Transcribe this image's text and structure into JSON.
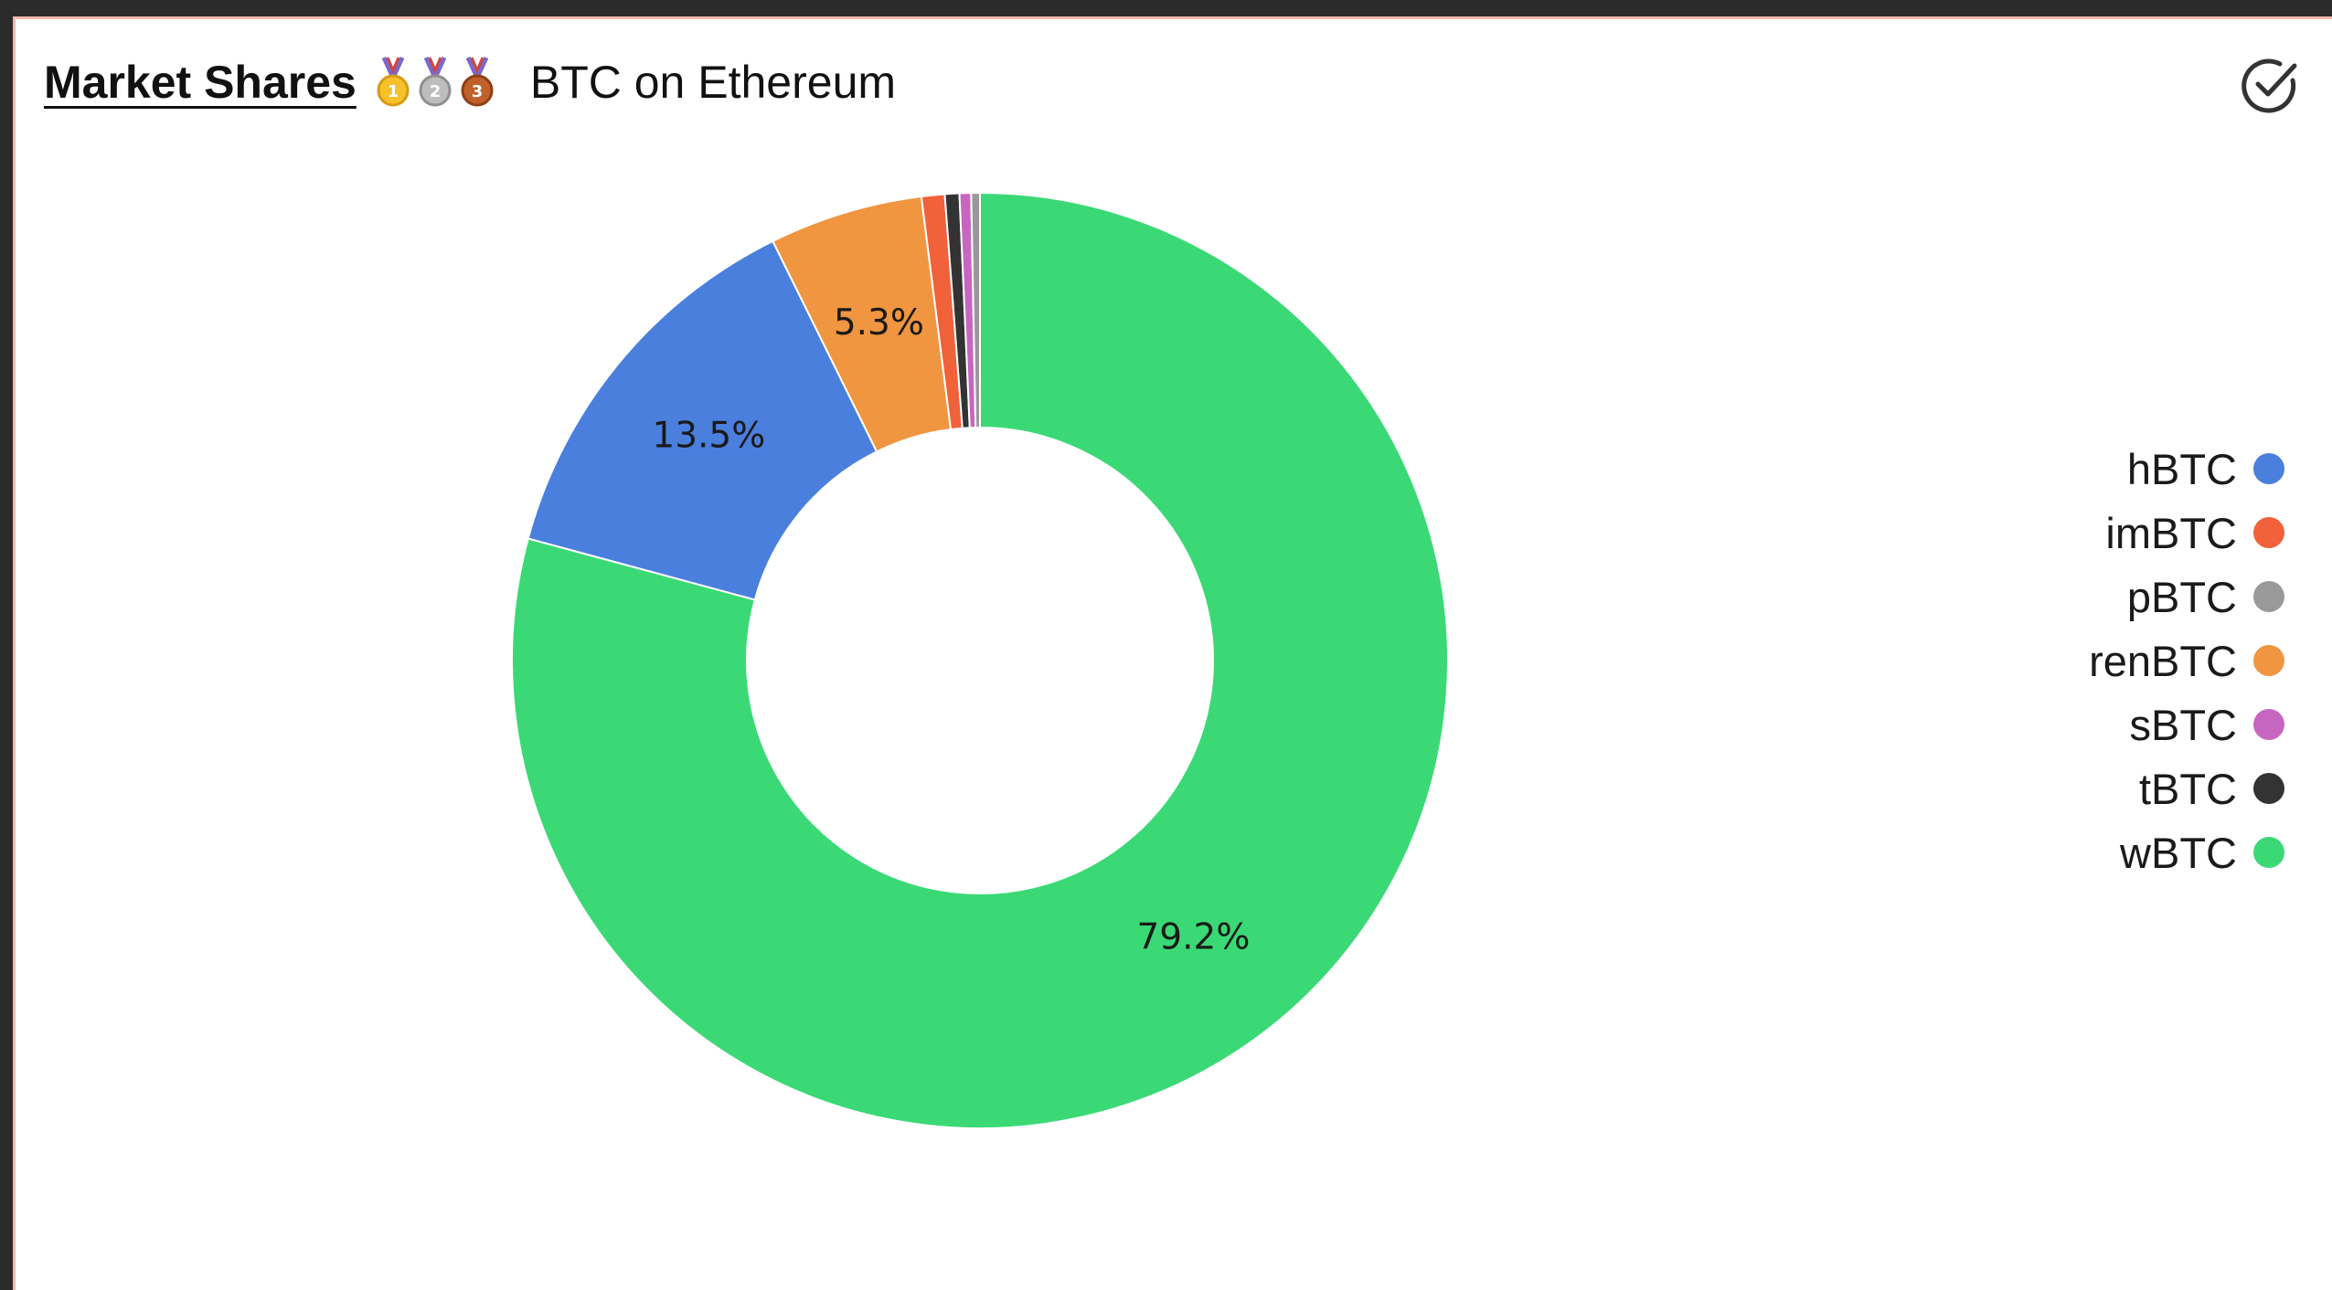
{
  "header": {
    "title": "Market Shares",
    "medal_icons": [
      "gold-medal-icon",
      "silver-medal-icon",
      "bronze-medal-icon"
    ],
    "subtitle": "BTC on Ethereum"
  },
  "actions": {
    "check_icon": "check-circle-icon"
  },
  "chart_data": {
    "type": "pie",
    "donut": true,
    "labels": [
      "wBTC",
      "hBTC",
      "renBTC",
      "imBTC",
      "tBTC",
      "sBTC",
      "pBTC"
    ],
    "values": [
      79.2,
      13.5,
      5.3,
      0.8,
      0.5,
      0.4,
      0.3
    ],
    "data_labels": [
      "79.2%",
      "13.5%",
      "5.3%",
      "",
      "",
      "",
      ""
    ],
    "colors": [
      "#3ad975",
      "#4a7fdd",
      "#f09540",
      "#f1613a",
      "#333333",
      "#c766c1",
      "#999999"
    ],
    "legend": {
      "position": "right",
      "entries": [
        {
          "name": "hBTC",
          "color": "#4a7fdd"
        },
        {
          "name": "imBTC",
          "color": "#f1613a"
        },
        {
          "name": "pBTC",
          "color": "#999999"
        },
        {
          "name": "renBTC",
          "color": "#f09540"
        },
        {
          "name": "sBTC",
          "color": "#c766c1"
        },
        {
          "name": "tBTC",
          "color": "#333333"
        },
        {
          "name": "wBTC",
          "color": "#3ad975"
        }
      ]
    }
  }
}
